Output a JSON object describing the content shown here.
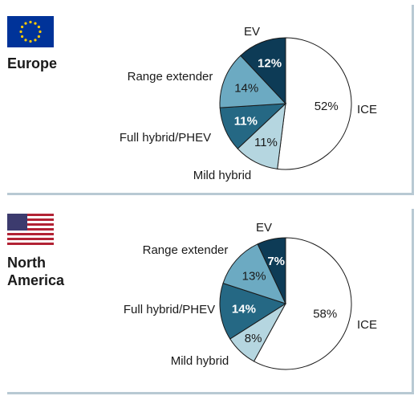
{
  "chart_data": [
    {
      "type": "pie",
      "region": "Europe",
      "flag_icon": "eu-flag-icon",
      "slices": [
        {
          "label": "ICE",
          "value": 52,
          "value_label": "52%",
          "color": "#ffffff",
          "text_color": "#1a1a1a"
        },
        {
          "label": "Mild hybrid",
          "value": 11,
          "value_label": "11%",
          "color": "#b5d6e0",
          "text_color": "#1a1a1a"
        },
        {
          "label": "Full hybrid/PHEV",
          "value": 11,
          "value_label": "11%",
          "color": "#256884",
          "text_color": "#ffffff"
        },
        {
          "label": "Range extender",
          "value": 14,
          "value_label": "14%",
          "color": "#6caac2",
          "text_color": "#1a1a1a"
        },
        {
          "label": "EV",
          "value": 12,
          "value_label": "12%",
          "color": "#0d3b56",
          "text_color": "#ffffff"
        }
      ]
    },
    {
      "type": "pie",
      "region": "North America",
      "region_lines": [
        "North",
        "America"
      ],
      "flag_icon": "us-flag-icon",
      "slices": [
        {
          "label": "ICE",
          "value": 58,
          "value_label": "58%",
          "color": "#ffffff",
          "text_color": "#1a1a1a"
        },
        {
          "label": "Mild hybrid",
          "value": 8,
          "value_label": "8%",
          "color": "#b5d6e0",
          "text_color": "#1a1a1a"
        },
        {
          "label": "Full hybrid/PHEV",
          "value": 14,
          "value_label": "14%",
          "color": "#256884",
          "text_color": "#ffffff"
        },
        {
          "label": "Range extender",
          "value": 13,
          "value_label": "13%",
          "color": "#6caac2",
          "text_color": "#1a1a1a"
        },
        {
          "label": "EV",
          "value": 7,
          "value_label": "7%",
          "color": "#0d3b56",
          "text_color": "#ffffff"
        }
      ]
    }
  ],
  "colors": {
    "border": "#b8c9d3",
    "eu_blue": "#003399",
    "eu_gold": "#ffcc00",
    "us_red": "#b22234",
    "us_blue": "#3c3b6e"
  }
}
